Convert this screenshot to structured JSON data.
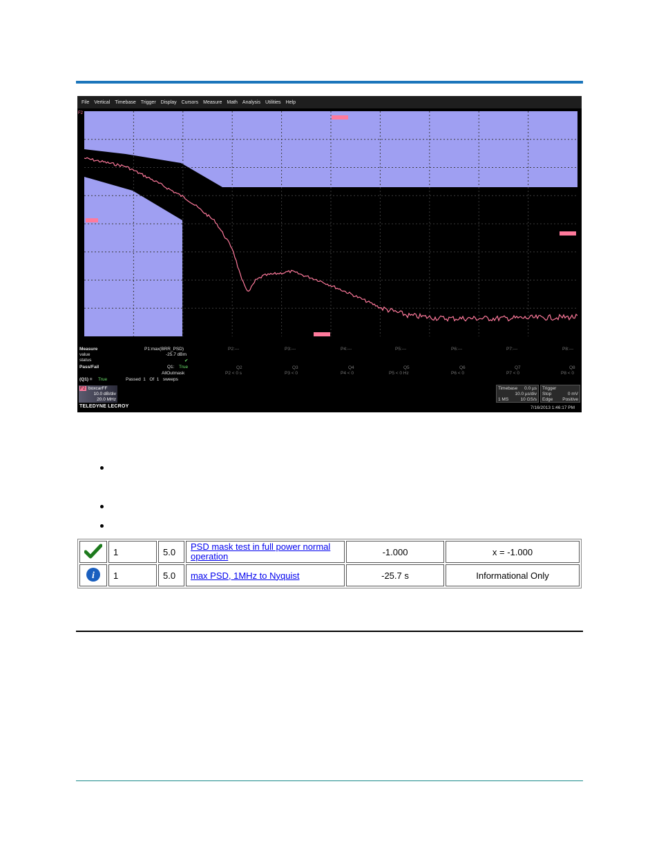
{
  "scope": {
    "menu": [
      "File",
      "Vertical",
      "Timebase",
      "Trigger",
      "Display",
      "Cursors",
      "Measure",
      "Math",
      "Analysis",
      "Utilities",
      "Help"
    ],
    "marker_tl": "F2",
    "measure": {
      "measure_label": "Measure",
      "value_label": "value",
      "status_label": "status",
      "passfail_label": "Pass/Fail",
      "q1_label": "(Q1) =",
      "q1_value": "True",
      "p1_name": "P1:max(BRR_PSD)",
      "p1_value": "-25.7 dBm",
      "p1_status": "✔",
      "q1_name": "Q1:",
      "q1_true": "True",
      "q1_desc": "AllOutmask",
      "passed_text": "Passed  1   Of  1   sweeps",
      "params": [
        "P2:---",
        "P3:---",
        "P4:---",
        "P5:---",
        "P6:---",
        "P7:---",
        "P8:---"
      ],
      "queries": [
        "Q2",
        "Q3",
        "Q4",
        "Q5",
        "Q6",
        "Q7",
        "Q8"
      ],
      "query_conds": [
        "P2 < 0 s",
        "P3 < 0",
        "P4 < 0",
        "P5 < 0 Hz",
        "P6 < 0",
        "P7 < 0",
        "P8 < 0"
      ]
    },
    "channel": {
      "tag": "F2",
      "name": "boxcarFF",
      "scale": "10.0 dB/div",
      "span": "20.0 MHz"
    },
    "timebase": {
      "label": "Timebase",
      "value": "0.0 µs",
      "div": "10.0 µs/div",
      "pts": "1 MS",
      "rate": "10 GS/s"
    },
    "trigger": {
      "label": "Trigger",
      "mode": "Stop",
      "level": "0 mV",
      "type": "Edge",
      "slope": "Positive"
    },
    "brand": "TELEDYNE LECROY",
    "datetime": "7/16/2013 1:46:17 PM",
    "colors": {
      "mask": "#9f9ff2",
      "trace": "#ff7a9c",
      "grid": "#3c3c3c"
    }
  },
  "results": [
    {
      "icon": "check-icon",
      "index": "1",
      "version": "5.0",
      "title": "PSD mask test in full power normal operation",
      "value": "-1.000",
      "outcome": "x = -1.000"
    },
    {
      "icon": "info-icon",
      "index": "1",
      "version": "5.0",
      "title": "max PSD, 1MHz to Nyquist",
      "value": "-25.7 s",
      "outcome": "Informational Only"
    }
  ]
}
